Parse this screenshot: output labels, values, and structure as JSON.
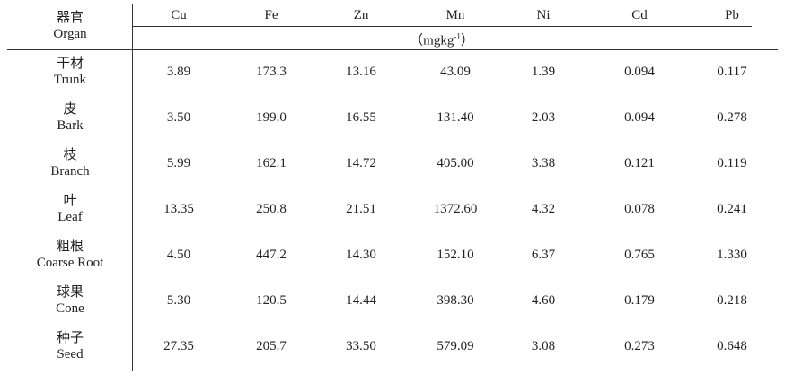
{
  "table": {
    "organ_header": {
      "zh": "器官",
      "en": "Organ"
    },
    "columns": [
      "Cu",
      "Fe",
      "Zn",
      "Mn",
      "Ni",
      "Cd",
      "Pb"
    ],
    "unit": {
      "prefix": "（mgkg",
      "exponent": "-1",
      "suffix": "）"
    },
    "rows": [
      {
        "zh": "干材",
        "en": "Trunk",
        "values": [
          "3.89",
          "173.3",
          "13.16",
          "43.09",
          "1.39",
          "0.094",
          "0.117"
        ]
      },
      {
        "zh": "皮",
        "en": "Bark",
        "values": [
          "3.50",
          "199.0",
          "16.55",
          "131.40",
          "2.03",
          "0.094",
          "0.278"
        ]
      },
      {
        "zh": "枝",
        "en": "Branch",
        "values": [
          "5.99",
          "162.1",
          "14.72",
          "405.00",
          "3.38",
          "0.121",
          "0.119"
        ]
      },
      {
        "zh": "叶",
        "en": "Leaf",
        "values": [
          "13.35",
          "250.8",
          "21.51",
          "1372.60",
          "4.32",
          "0.078",
          "0.241"
        ]
      },
      {
        "zh": "粗根",
        "en": "Coarse Root",
        "values": [
          "4.50",
          "447.2",
          "14.30",
          "152.10",
          "6.37",
          "0.765",
          "1.330"
        ]
      },
      {
        "zh": "球果",
        "en": "Cone",
        "values": [
          "5.30",
          "120.5",
          "14.44",
          "398.30",
          "4.60",
          "0.179",
          "0.218"
        ]
      },
      {
        "zh": "种子",
        "en": "Seed",
        "values": [
          "27.35",
          "205.7",
          "33.50",
          "579.09",
          "3.08",
          "0.273",
          "0.648"
        ]
      }
    ]
  }
}
